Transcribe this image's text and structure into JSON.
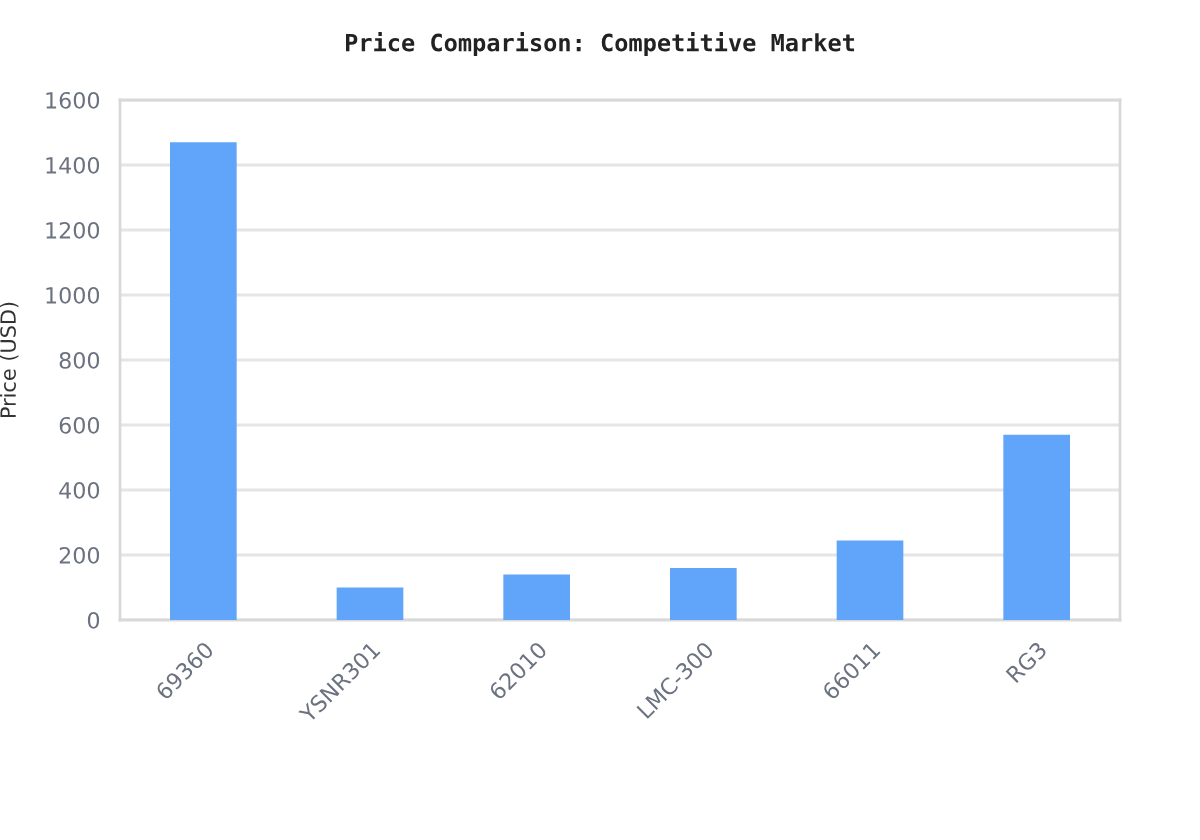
{
  "chart_data": {
    "type": "bar",
    "title": "Price Comparison: Competitive Market",
    "ylabel": "Price (USD)",
    "categories": [
      "69360",
      "YSNR301",
      "62010",
      "LMC-300",
      "66011",
      "RG3"
    ],
    "values": [
      1470,
      100,
      140,
      160,
      245,
      570
    ],
    "color": "#60a5fa",
    "ylim": [
      0,
      1600
    ],
    "yticks": [
      0,
      200,
      400,
      600,
      800,
      1000,
      1200,
      1400,
      1600
    ],
    "grid": "y",
    "legend": false
  }
}
